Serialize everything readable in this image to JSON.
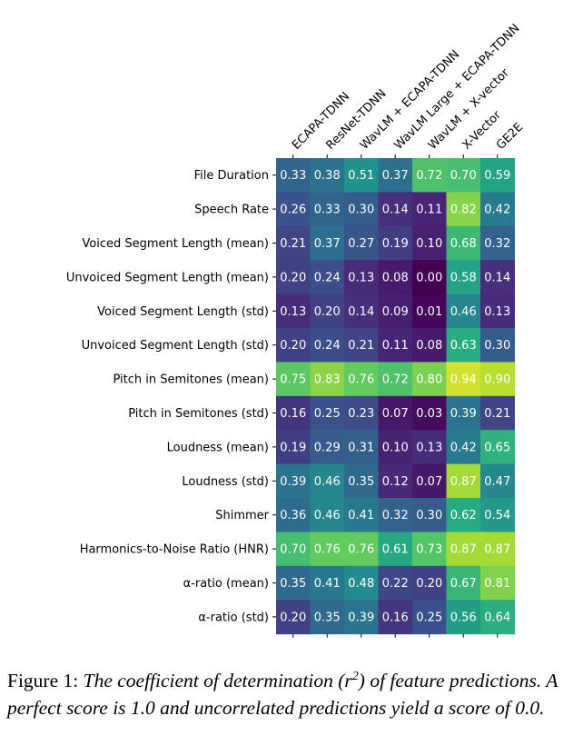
{
  "chart_data": {
    "type": "heatmap",
    "title": "",
    "xlabel": "",
    "ylabel": "",
    "colormap": "viridis",
    "value_range": [
      0.0,
      1.0
    ],
    "x_tick_position": "top",
    "columns": [
      "ECAPA-TDNN",
      "ResNet-TDNN",
      "WavLM + ECAPA-TDNN",
      "WavLM Large + ECAPA-TDNN",
      "WavLM + X-vector",
      "X-Vector",
      "GE2E"
    ],
    "rows": [
      "File Duration",
      "Speech Rate",
      "Voiced Segment Length (mean)",
      "Unvoiced Segment Length (mean)",
      "Voiced Segment Length (std)",
      "Unvoiced Segment Length (std)",
      "Pitch in Semitones (mean)",
      "Pitch in Semitones (std)",
      "Loudness (mean)",
      "Loudness (std)",
      "Shimmer",
      "Harmonics-to-Noise Ratio (HNR)",
      "α-ratio (mean)",
      "α-ratio (std)"
    ],
    "values": [
      [
        0.33,
        0.38,
        0.51,
        0.37,
        0.72,
        0.7,
        0.59
      ],
      [
        0.26,
        0.33,
        0.3,
        0.14,
        0.11,
        0.82,
        0.42
      ],
      [
        0.21,
        0.37,
        0.27,
        0.19,
        0.1,
        0.68,
        0.32
      ],
      [
        0.2,
        0.24,
        0.13,
        0.08,
        0.0,
        0.58,
        0.14
      ],
      [
        0.13,
        0.2,
        0.14,
        0.09,
        0.01,
        0.46,
        0.13
      ],
      [
        0.2,
        0.24,
        0.21,
        0.11,
        0.08,
        0.63,
        0.3
      ],
      [
        0.75,
        0.83,
        0.76,
        0.72,
        0.8,
        0.94,
        0.9
      ],
      [
        0.16,
        0.25,
        0.23,
        0.07,
        0.03,
        0.39,
        0.21
      ],
      [
        0.19,
        0.29,
        0.31,
        0.1,
        0.13,
        0.42,
        0.65
      ],
      [
        0.39,
        0.46,
        0.35,
        0.12,
        0.07,
        0.87,
        0.47
      ],
      [
        0.36,
        0.46,
        0.41,
        0.32,
        0.3,
        0.62,
        0.54
      ],
      [
        0.7,
        0.76,
        0.76,
        0.61,
        0.73,
        0.87,
        0.87
      ],
      [
        0.35,
        0.41,
        0.48,
        0.22,
        0.2,
        0.67,
        0.81
      ],
      [
        0.2,
        0.35,
        0.39,
        0.16,
        0.25,
        0.56,
        0.64
      ]
    ]
  },
  "caption": {
    "label": "Figure 1:",
    "text_before_sup": "The coefficient of determination (r",
    "superscript": "2",
    "text_after_sup": ") of feature predictions. A perfect score is 1.0 and uncorrelated predictions yield a score of 0.0."
  }
}
